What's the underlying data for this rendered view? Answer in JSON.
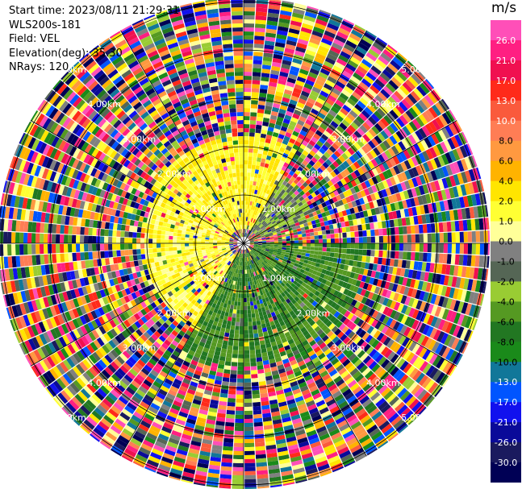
{
  "info": {
    "start_time": "Start time: 2023/08/11 21:29:31",
    "instrument": "WLS200s-181",
    "field": "Field: VEL",
    "elevation": "Elevation(deg): 35.30",
    "nrays": "NRays: 120"
  },
  "colorbar": {
    "unit": "m/s",
    "ticks": [
      "26.0",
      "21.0",
      "17.0",
      "13.0",
      "10.0",
      "8.0",
      "6.0",
      "4.0",
      "2.0",
      "1.0",
      "0.0",
      "-1.0",
      "-2.0",
      "-4.0",
      "-6.0",
      "-8.0",
      "-10.0",
      "-13.0",
      "-17.0",
      "-21.0",
      "-26.0",
      "-30.0"
    ],
    "colors": [
      "#ff4fb8",
      "#ff1f82",
      "#f01050",
      "#ff2a1a",
      "#fa5a3c",
      "#ff7d55",
      "#ff9940",
      "#ffb300",
      "#ffe500",
      "#ffff33",
      "#ffff99",
      "#808080",
      "#556655",
      "#99cc33",
      "#559922",
      "#227722",
      "#1a8a1a",
      "#117799",
      "#0055ff",
      "#1111ee",
      "#0a0a99",
      "#1a1a5e",
      "#000055"
    ]
  },
  "chart_data": {
    "type": "heatmap",
    "projection": "polar-ppi",
    "field": "VEL",
    "units": "m/s",
    "elevation_deg": 35.3,
    "n_rays": 120,
    "range_ring_labels": [
      "1.00km",
      "2.00km",
      "3.00km",
      "4.00km",
      "5.00km"
    ],
    "range_rings_km": [
      1,
      2,
      3,
      4,
      5
    ],
    "vmin": -30.0,
    "vmax": 30.0,
    "sectors": [
      {
        "azimuth_deg": [
          300,
          30
        ],
        "range_km": [
          0.3,
          2.2
        ],
        "value_ms": 2.0
      },
      {
        "azimuth_deg": [
          30,
          70
        ],
        "range_km": [
          0.3,
          1.5
        ],
        "value_ms": -2.0
      },
      {
        "azimuth_deg": [
          90,
          210
        ],
        "range_km": [
          0.2,
          2.5
        ],
        "value_ms": -6.0
      },
      {
        "azimuth_deg": [
          210,
          300
        ],
        "range_km": [
          0.3,
          2.0
        ],
        "value_ms": 1.5
      }
    ]
  }
}
